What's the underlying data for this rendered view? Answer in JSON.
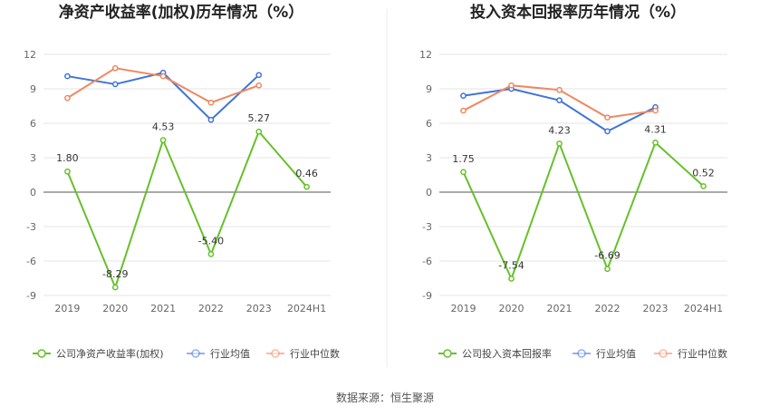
{
  "source": "数据来源：恒生聚源",
  "chart_data": [
    {
      "type": "line",
      "title": "净资产收益率(加权)历年情况（%）",
      "categories": [
        "2019",
        "2020",
        "2021",
        "2022",
        "2023",
        "2024H1"
      ],
      "ylim": [
        -9,
        12
      ],
      "yticks": [
        12,
        9,
        6,
        3,
        0,
        -3,
        -6,
        -9
      ],
      "grid": true,
      "legend_position": "bottom",
      "series": [
        {
          "name": "公司净资产收益率(加权)",
          "color": "#66c02a",
          "values": [
            1.8,
            -8.29,
            4.53,
            -5.4,
            5.27,
            0.46
          ],
          "labels": [
            "1.80",
            "-8.29",
            "4.53",
            "-5.40",
            "5.27",
            "0.46"
          ]
        },
        {
          "name": "行业均值",
          "color": "#3f74d9",
          "values": [
            10.1,
            9.4,
            10.4,
            6.3,
            10.2,
            null
          ]
        },
        {
          "name": "行业中位数",
          "color": "#f0875f",
          "values": [
            8.2,
            10.8,
            10.1,
            7.8,
            9.3,
            null
          ]
        }
      ]
    },
    {
      "type": "line",
      "title": "投入资本回报率历年情况（%）",
      "categories": [
        "2019",
        "2020",
        "2021",
        "2022",
        "2023",
        "2024H1"
      ],
      "ylim": [
        -9,
        12
      ],
      "yticks": [
        12,
        9,
        6,
        3,
        0,
        -3,
        -6,
        -9
      ],
      "grid": true,
      "legend_position": "bottom",
      "series": [
        {
          "name": "公司投入资本回报率",
          "color": "#66c02a",
          "values": [
            1.75,
            -7.54,
            4.23,
            -6.69,
            4.31,
            0.52
          ],
          "labels": [
            "1.75",
            "-7.54",
            "4.23",
            "-6.69",
            "4.31",
            "0.52"
          ]
        },
        {
          "name": "行业均值",
          "color": "#3f74d9",
          "values": [
            8.4,
            9.0,
            8.0,
            5.3,
            7.4,
            null
          ]
        },
        {
          "name": "行业中位数",
          "color": "#f0875f",
          "values": [
            7.1,
            9.3,
            8.9,
            6.5,
            7.1,
            null
          ]
        }
      ]
    }
  ]
}
